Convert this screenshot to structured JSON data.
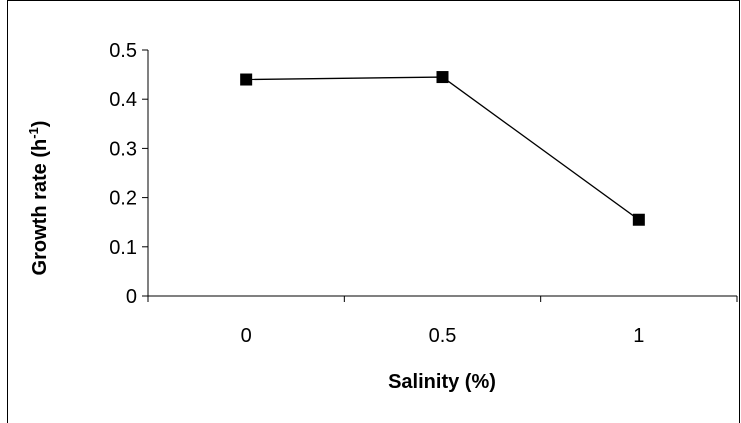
{
  "chart_data": {
    "type": "line",
    "title": "",
    "xlabel": "Salinity (%)",
    "ylabel_main": "Growth rate (h",
    "ylabel_sup": "-1",
    "ylabel_close": ")",
    "categories": [
      "0",
      "0.5",
      "1"
    ],
    "series": [
      {
        "values": [
          0.44,
          0.445,
          0.155
        ]
      }
    ],
    "ylim": [
      0,
      0.5
    ],
    "yticks": [
      "0",
      "0.1",
      "0.2",
      "0.3",
      "0.4",
      "0.5"
    ],
    "ytick_values": [
      0,
      0.1,
      0.2,
      0.3,
      0.4,
      0.5
    ],
    "grid": false,
    "legend": "none",
    "marker": "square",
    "line_color": "#000000",
    "marker_color": "#000000"
  }
}
